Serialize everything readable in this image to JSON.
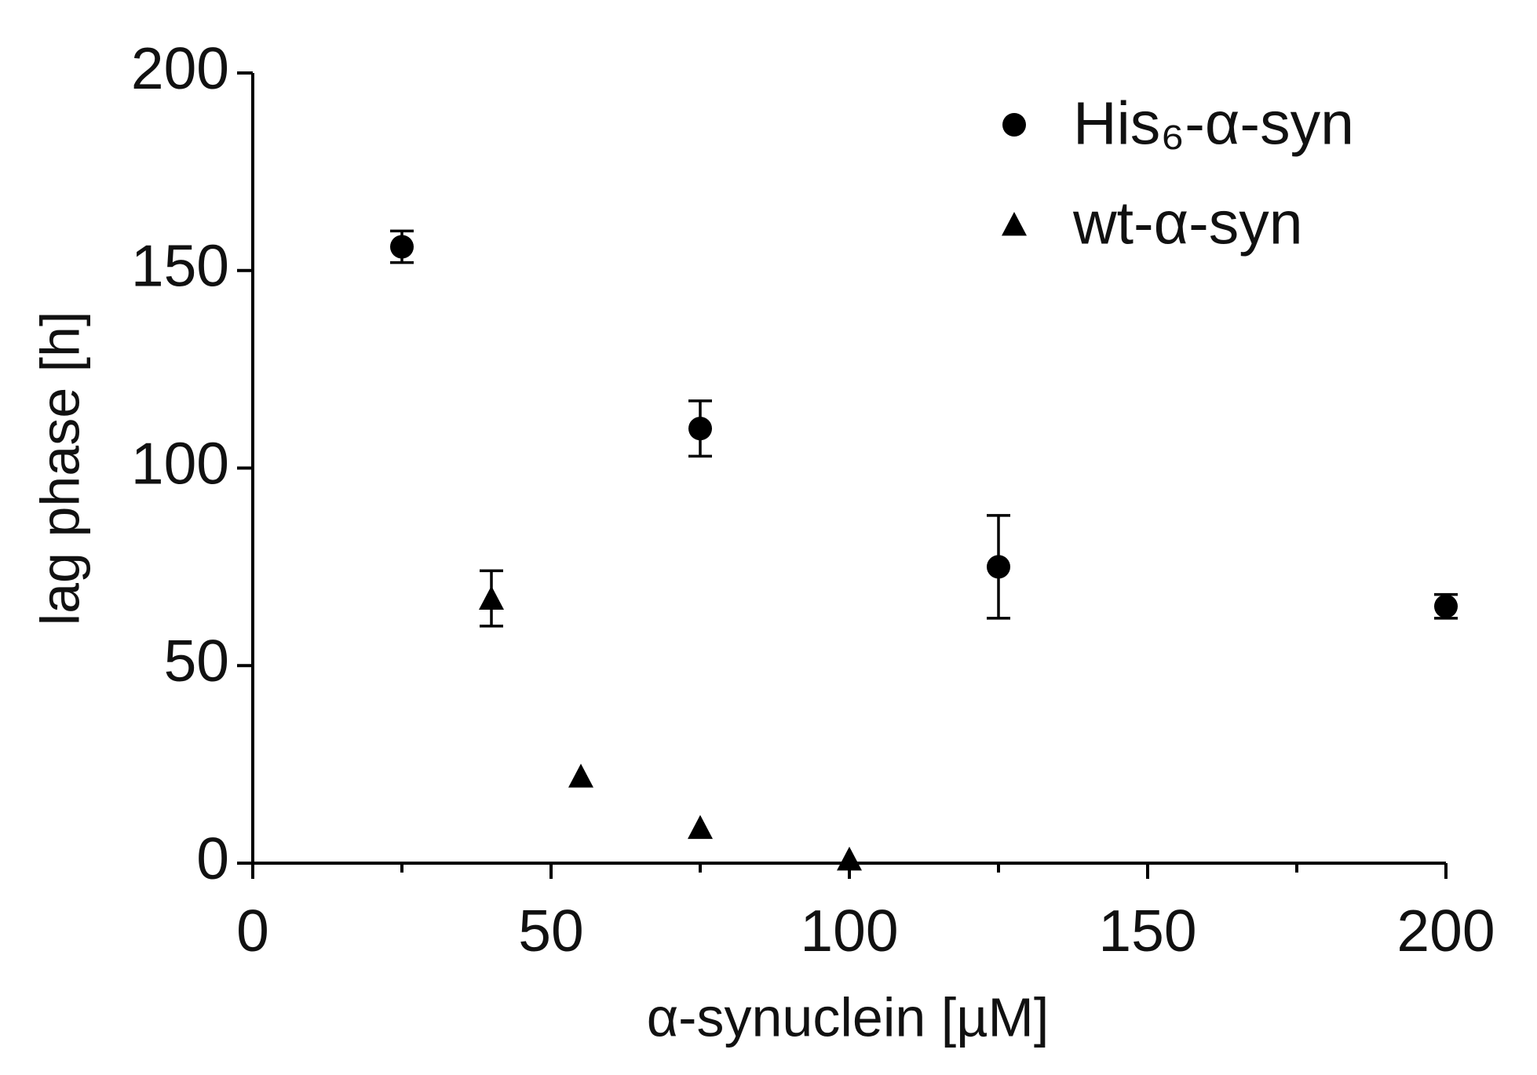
{
  "chart_data": {
    "type": "scatter",
    "xlabel": "α-synuclein [µM]",
    "ylabel": "lag phase [h]",
    "xlim": [
      0,
      200
    ],
    "ylim": [
      0,
      200
    ],
    "xticks": [
      0,
      50,
      100,
      150,
      200
    ],
    "xticks_minor": [
      25,
      75,
      125,
      175
    ],
    "yticks": [
      0,
      50,
      100,
      150,
      200
    ],
    "legend": "upper right",
    "series": [
      {
        "name": "His₆-α-syn",
        "marker": "circle",
        "color": "#000000",
        "x": [
          25,
          75,
          125,
          200
        ],
        "values": [
          156,
          110,
          75,
          65
        ],
        "errors": [
          4,
          7,
          13,
          3
        ]
      },
      {
        "name": "wt-α-syn",
        "marker": "triangle",
        "color": "#000000",
        "x": [
          40,
          55,
          75,
          100
        ],
        "values": [
          67,
          22,
          9,
          1
        ],
        "errors": [
          7,
          null,
          null,
          null
        ]
      }
    ]
  }
}
